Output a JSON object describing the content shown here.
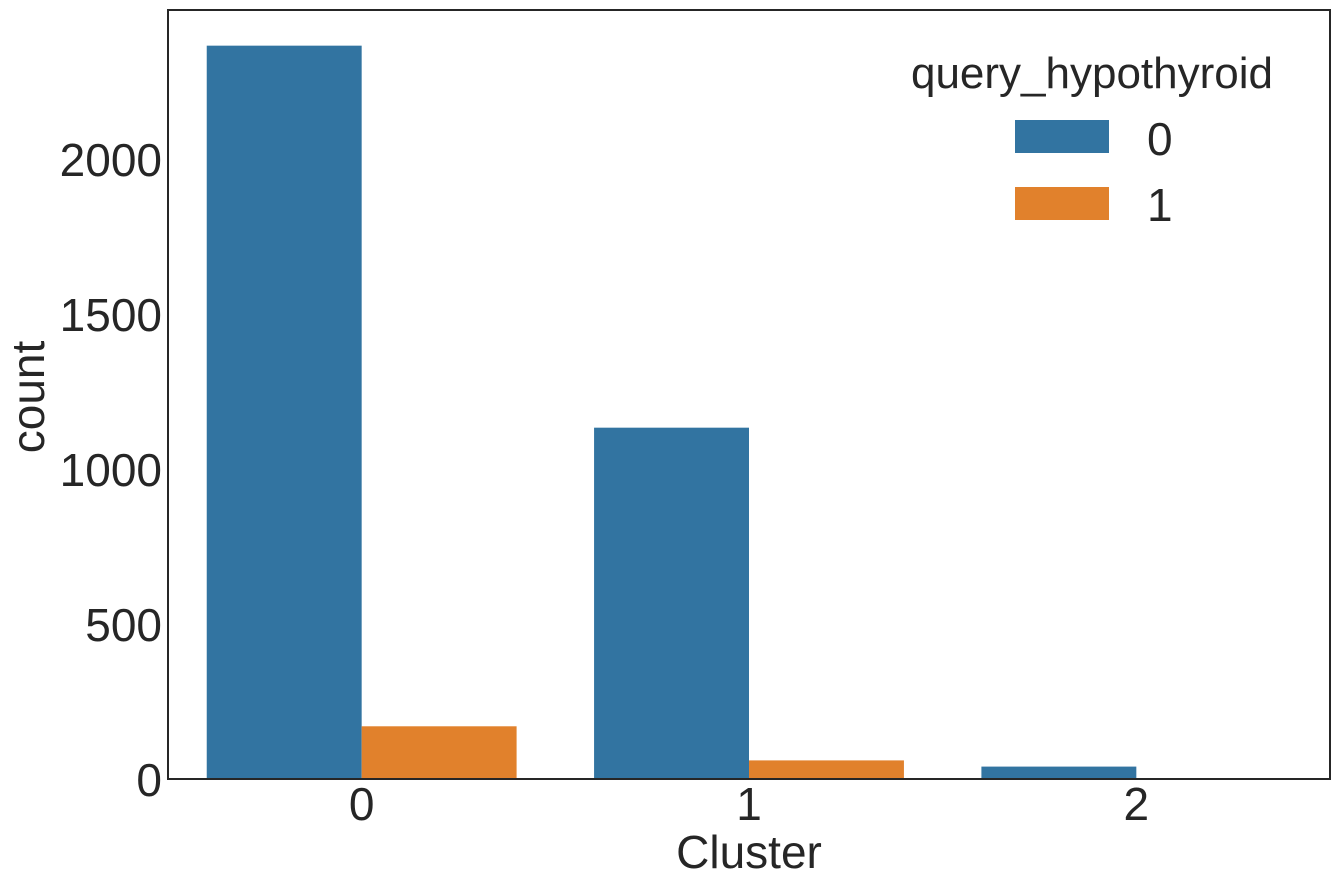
{
  "chart_data": {
    "type": "bar",
    "categories": [
      "0",
      "1",
      "2"
    ],
    "xlabel": "Cluster",
    "ylabel": "count",
    "ylim": [
      0,
      2480
    ],
    "yticks": [
      0,
      500,
      1000,
      1500,
      2000
    ],
    "grid": false,
    "legend": {
      "title": "query_hypothyroid",
      "placement": "top-right"
    },
    "series": [
      {
        "name": "0",
        "color": "#3274a1",
        "values": [
          2365,
          1133,
          40
        ]
      },
      {
        "name": "1",
        "color": "#e1812c",
        "values": [
          170,
          60,
          0
        ]
      }
    ]
  }
}
